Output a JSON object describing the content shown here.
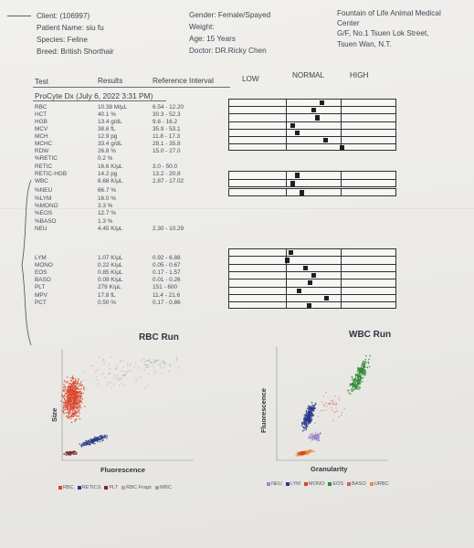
{
  "header": {
    "client": "Client: (106997)",
    "patient": "Patient Name: siu fu",
    "species": "Species: Feline",
    "breed": "Breed: British Shorthair",
    "gender": "Gender: Female/Spayed",
    "weight": "Weight:",
    "age": "Age: 15 Years",
    "doctor": "Doctor: DR.Ricky Chen",
    "clinic_line1": "Fountain of Life Animal Medical",
    "clinic_line2": "Center",
    "clinic_line3": "G/F, No.1 Tsuen Lok Street,",
    "clinic_line4": "Tsuen Wan, N.T."
  },
  "columns": {
    "test": "Test",
    "results": "Results",
    "reference": "Reference Interval",
    "low": "LOW",
    "normal": "NORMAL",
    "high": "HIGH"
  },
  "run_title": "ProCyte Dx (July 6, 2022 3:31 PM)",
  "results": [
    {
      "name": "RBC",
      "value": "10.38 M/µL",
      "range": "6.54 - 12.20",
      "gauge": 0.55
    },
    {
      "name": "HCT",
      "value": "40.1 %",
      "range": "30.3 - 52.3",
      "gauge": 0.5
    },
    {
      "name": "HGB",
      "value": "13.4 g/dL",
      "range": "9.8 - 16.2",
      "gauge": 0.52
    },
    {
      "name": "MCV",
      "value": "38.6 fL",
      "range": "35.9 - 53.1",
      "gauge": 0.37
    },
    {
      "name": "MCH",
      "value": "12.9 pg",
      "range": "11.8 - 17.3",
      "gauge": 0.4
    },
    {
      "name": "MCHC",
      "value": "33.4 g/dL",
      "range": "28.1 - 35.8",
      "gauge": 0.57
    },
    {
      "name": "RDW",
      "value": "26.8 %",
      "range": "15.0 - 27.0",
      "gauge": 0.67
    },
    {
      "name": "%RETIC",
      "value": "0.2 %",
      "range": ""
    },
    {
      "name": "RETIC",
      "value": "16.6 K/µL",
      "range": "3.0 - 50.0",
      "gauge": 0.4
    },
    {
      "name": "RETIC-HGB",
      "value": "14.2 pg",
      "range": "13.2 - 20.8",
      "gauge": 0.37
    },
    {
      "name": "WBC",
      "value": "6.68 K/µL",
      "range": "2.87 - 17.02",
      "gauge": 0.43
    },
    {
      "name": "%NEU",
      "value": "66.7 %",
      "range": ""
    },
    {
      "name": "%LYM",
      "value": "16.0 %",
      "range": ""
    },
    {
      "name": "%MONO",
      "value": "3.3 %",
      "range": ""
    },
    {
      "name": "%EOS",
      "value": "12.7 %",
      "range": ""
    },
    {
      "name": "%BASO",
      "value": "1.3 %",
      "range": ""
    },
    {
      "name": "NEU",
      "value": "4.45 K/µL",
      "range": "2.30 - 10.29",
      "gauge": 0.36
    },
    {
      "name": "LYM",
      "value": "1.07 K/µL",
      "range": "0.92 - 6.88",
      "gauge": 0.34
    },
    {
      "name": "MONO",
      "value": "0.22 K/µL",
      "range": "0.05 - 0.67",
      "gauge": 0.45
    },
    {
      "name": "EOS",
      "value": "0.85 K/µL",
      "range": "0.17 - 1.57",
      "gauge": 0.5
    },
    {
      "name": "BASO",
      "value": "0.09 K/µL",
      "range": "0.01 - 0.26",
      "gauge": 0.48
    },
    {
      "name": "PLT",
      "value": "279 K/µL",
      "range": "151 - 600",
      "gauge": 0.41
    },
    {
      "name": "MPV",
      "value": "17.8 fL",
      "range": "11.4 - 21.6",
      "gauge": 0.58
    },
    {
      "name": "PCT",
      "value": "0.50 %",
      "range": "0.17 - 0.86",
      "gauge": 0.47
    }
  ],
  "plots": {
    "rbc": {
      "title": "RBC Run",
      "ylabel": "Size",
      "xlabel": "Fluorescence",
      "legend": [
        {
          "label": "RBC",
          "color": "#d9482e"
        },
        {
          "label": "RETICS",
          "color": "#2a3a8a"
        },
        {
          "label": "PLT",
          "color": "#7a2a2a"
        },
        {
          "label": "RBC Frags",
          "color": "#c9a0a0"
        },
        {
          "label": "WBC",
          "color": "#9aa0b0"
        }
      ]
    },
    "wbc": {
      "title": "WBC Run",
      "ylabel": "Fluorescence",
      "xlabel": "Granularity",
      "legend": [
        {
          "label": "NEU",
          "color": "#a088c8"
        },
        {
          "label": "LYM",
          "color": "#2b3a8c"
        },
        {
          "label": "MONO",
          "color": "#d9482e"
        },
        {
          "label": "EOS",
          "color": "#2e8b3a"
        },
        {
          "label": "BASO",
          "color": "#d06060"
        },
        {
          "label": "URBC",
          "color": "#e8883a"
        }
      ]
    }
  }
}
